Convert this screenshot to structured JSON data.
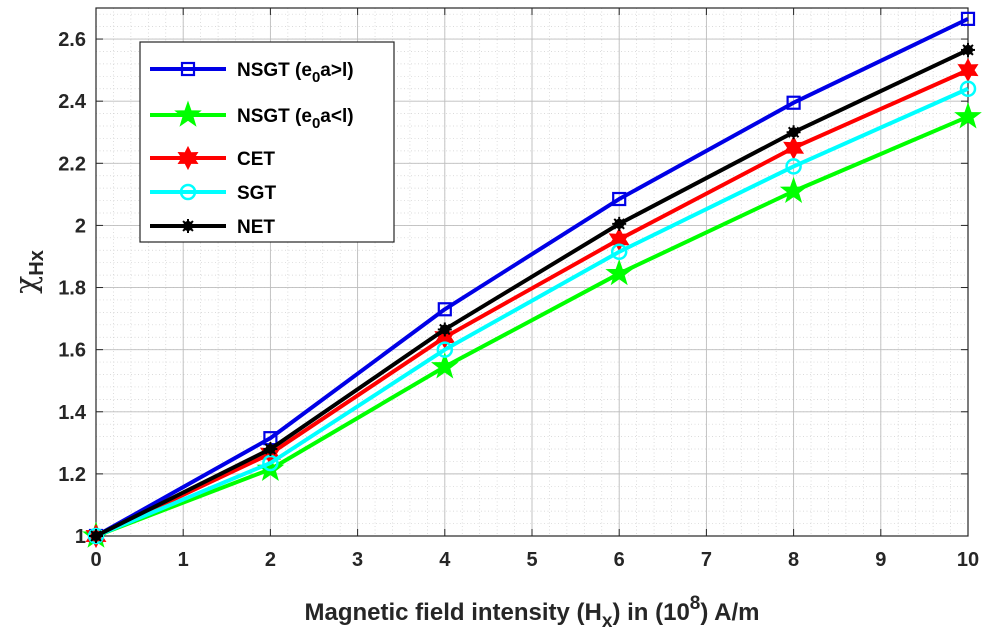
{
  "chart_data": {
    "type": "line",
    "x": [
      0,
      2,
      4,
      6,
      8,
      10
    ],
    "xlim": [
      0,
      10
    ],
    "ylim": [
      1,
      2.7
    ],
    "xticks": [
      "0",
      "1",
      "2",
      "3",
      "4",
      "5",
      "6",
      "7",
      "8",
      "9",
      "10"
    ],
    "yticks": [
      "1",
      "1.2",
      "1.4",
      "1.6",
      "1.8",
      "2",
      "2.2",
      "2.4",
      "2.6"
    ],
    "xlabel": {
      "main": "Magnetic field intensity (H",
      "sub": "x",
      "mid": ") in (10",
      "sup": "8",
      "end": ") A/m"
    },
    "ylabel": {
      "main": "χ",
      "sub": "Hx"
    },
    "grid": true,
    "minor_grid": true,
    "legend_placement": "top-left",
    "series": [
      {
        "name": {
          "pre": "NSGT (e",
          "sub": "0",
          "post": "a>l)"
        },
        "color": "#0000e6",
        "marker": "square",
        "values": [
          1.0,
          1.315,
          1.73,
          2.085,
          2.395,
          2.665
        ]
      },
      {
        "name": {
          "pre": "NSGT (e",
          "sub": "0",
          "post": "a<l)"
        },
        "color": "#00ff00",
        "marker": "pentagram",
        "values": [
          1.0,
          1.215,
          1.545,
          1.845,
          2.11,
          2.35
        ]
      },
      {
        "name": {
          "pre": "CET",
          "sub": "",
          "post": ""
        },
        "color": "#ff0000",
        "marker": "hexagram",
        "values": [
          1.0,
          1.265,
          1.64,
          1.955,
          2.25,
          2.5
        ]
      },
      {
        "name": {
          "pre": "SGT",
          "sub": "",
          "post": ""
        },
        "color": "#00ffff",
        "marker": "circle",
        "values": [
          1.0,
          1.235,
          1.6,
          1.915,
          2.19,
          2.44
        ]
      },
      {
        "name": {
          "pre": "NET",
          "sub": "",
          "post": ""
        },
        "color": "#000000",
        "marker": "asterisk",
        "values": [
          1.0,
          1.28,
          1.665,
          2.005,
          2.3,
          2.565
        ]
      }
    ]
  }
}
